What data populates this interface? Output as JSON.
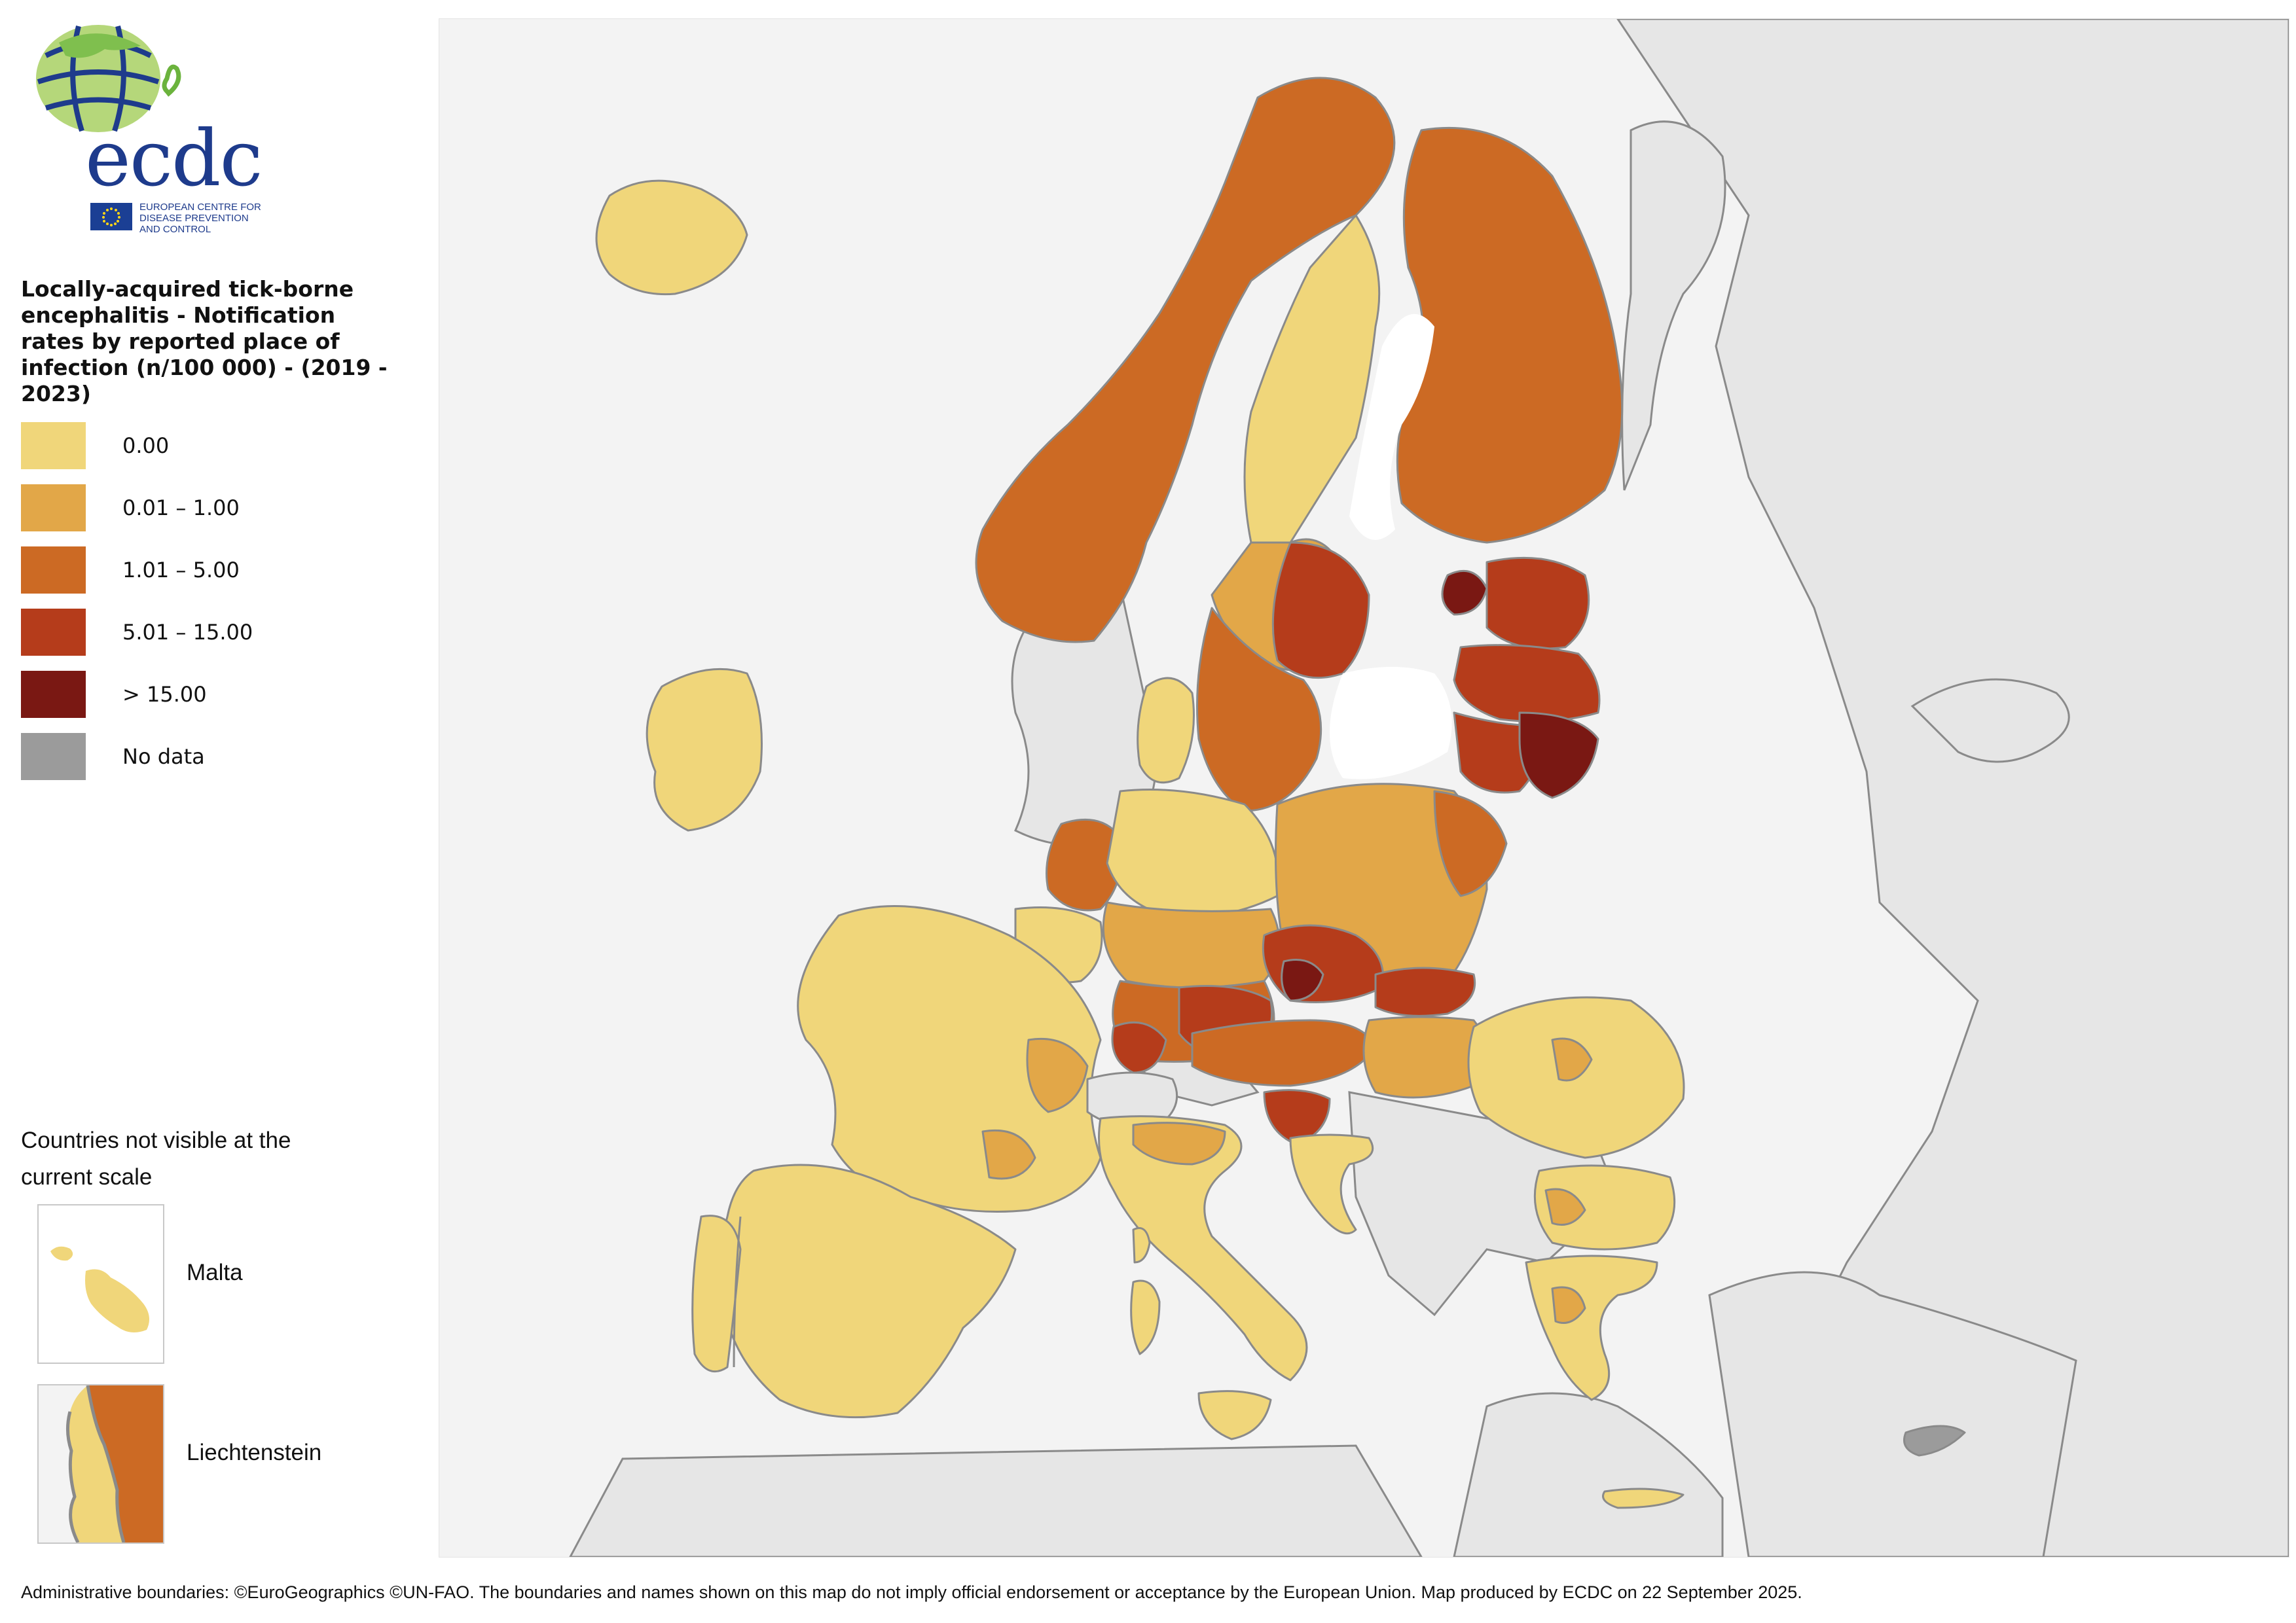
{
  "logo": {
    "text": "ecdc",
    "org": "EUROPEAN CENTRE FOR\nDISEASE PREVENTION\nAND CONTROL"
  },
  "legend": {
    "title": "Locally-acquired tick-borne encephalitis - Notification rates by reported place of infection (n/100 000) - (2019 - 2023)",
    "classes": [
      {
        "label": "0.00",
        "color": "#f0d67a"
      },
      {
        "label": "0.01 – 1.00",
        "color": "#e2a748"
      },
      {
        "label": "1.01 – 5.00",
        "color": "#cc6a24"
      },
      {
        "label": "5.01 – 15.00",
        "color": "#b53c1b"
      },
      {
        "label": "> 15.00",
        "color": "#7a1813"
      },
      {
        "label": "No data",
        "color": "#9b9b9b"
      }
    ]
  },
  "insets": {
    "heading": "Countries not visible at the current scale",
    "malta": "Malta",
    "liechtenstein": "Liechtenstein"
  },
  "colors": {
    "non_eu": "#e6e6e6",
    "sea": "#ffffff",
    "border": "#8a8a8a"
  },
  "footer": "Administrative boundaries: ©EuroGeographics ©UN-FAO. The boundaries and names shown on this map do not imply official endorsement or acceptance by the European Union. Map produced by ECDC on 22 September 2025."
}
